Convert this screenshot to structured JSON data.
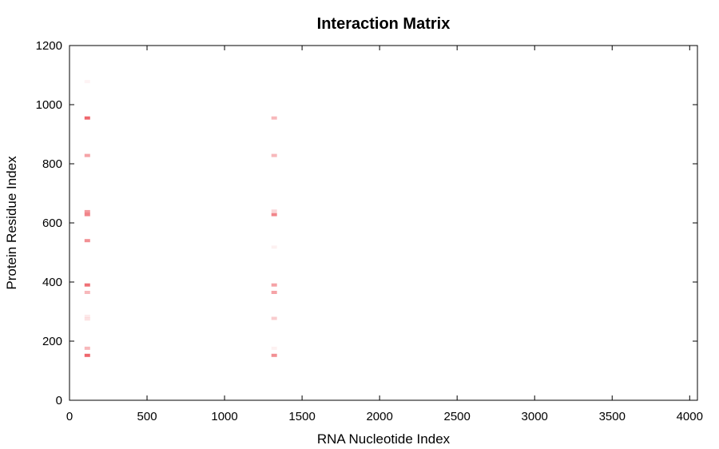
{
  "chart_data": {
    "type": "heatmap",
    "title": "Interaction Matrix",
    "xlabel": "RNA Nucleotide Index",
    "ylabel": "Protein Residue Index",
    "xlim": [
      0,
      4050
    ],
    "ylim": [
      0,
      1200
    ],
    "xticks": [
      "0",
      "500",
      "1000",
      "1500",
      "2000",
      "2500",
      "3000",
      "3500",
      "4000"
    ],
    "yticks": [
      "0",
      "200",
      "400",
      "600",
      "800",
      "1000",
      "1200"
    ],
    "grid": false,
    "color": "#e8343c",
    "cells": [
      {
        "x": 115,
        "y": 1078,
        "intensity": 0.06
      },
      {
        "x": 115,
        "y": 955,
        "intensity": 0.75
      },
      {
        "x": 115,
        "y": 828,
        "intensity": 0.45
      },
      {
        "x": 115,
        "y": 638,
        "intensity": 0.5
      },
      {
        "x": 115,
        "y": 628,
        "intensity": 0.6
      },
      {
        "x": 115,
        "y": 540,
        "intensity": 0.55
      },
      {
        "x": 115,
        "y": 390,
        "intensity": 0.7
      },
      {
        "x": 115,
        "y": 365,
        "intensity": 0.35
      },
      {
        "x": 115,
        "y": 284,
        "intensity": 0.1
      },
      {
        "x": 115,
        "y": 275,
        "intensity": 0.14
      },
      {
        "x": 115,
        "y": 176,
        "intensity": 0.35
      },
      {
        "x": 115,
        "y": 152,
        "intensity": 0.75
      },
      {
        "x": 1320,
        "y": 955,
        "intensity": 0.35
      },
      {
        "x": 1320,
        "y": 828,
        "intensity": 0.35
      },
      {
        "x": 1320,
        "y": 640,
        "intensity": 0.2
      },
      {
        "x": 1320,
        "y": 628,
        "intensity": 0.6
      },
      {
        "x": 1320,
        "y": 518,
        "intensity": 0.07
      },
      {
        "x": 1320,
        "y": 390,
        "intensity": 0.45
      },
      {
        "x": 1320,
        "y": 365,
        "intensity": 0.45
      },
      {
        "x": 1320,
        "y": 277,
        "intensity": 0.25
      },
      {
        "x": 1320,
        "y": 176,
        "intensity": 0.07
      },
      {
        "x": 1320,
        "y": 152,
        "intensity": 0.55
      }
    ]
  }
}
